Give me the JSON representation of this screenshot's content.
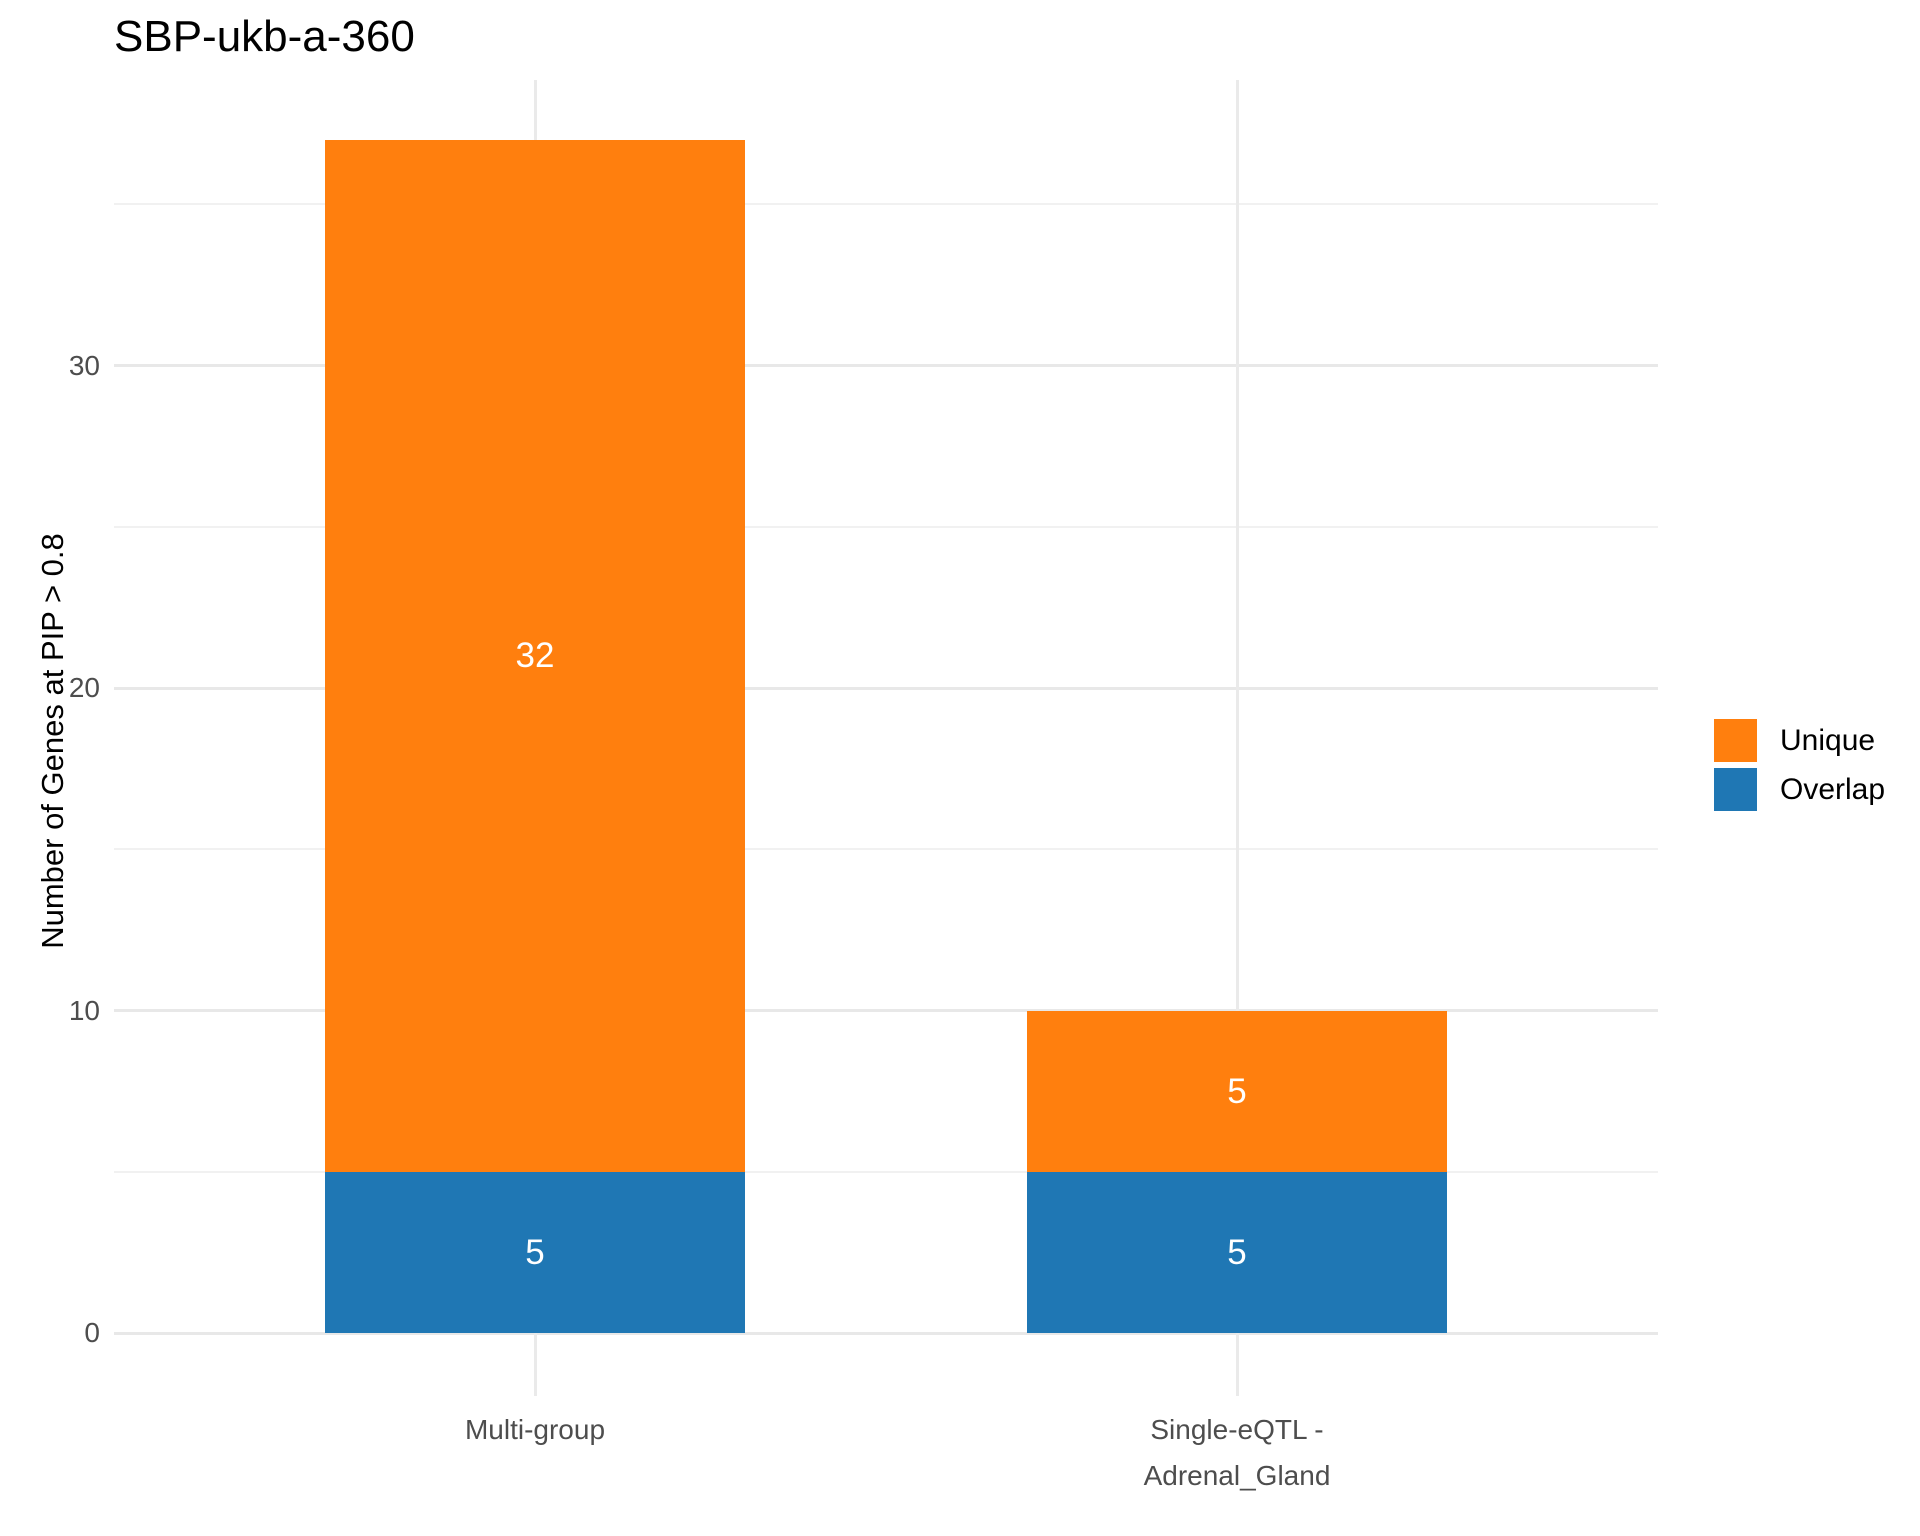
{
  "title": "SBP-ukb-a-360",
  "ylabel": "Number of Genes at PIP > 0.8",
  "legend": {
    "items": [
      {
        "label": "Unique",
        "color": "#ff7f0e"
      },
      {
        "label": "Overlap",
        "color": "#1f77b4"
      }
    ]
  },
  "chart_data": {
    "type": "bar",
    "stacked": true,
    "title": "SBP-ukb-a-360",
    "xlabel": "",
    "ylabel": "Number of Genes at PIP > 0.8",
    "categories": [
      "Multi-group",
      "Single-eQTL -\nAdrenal_Gland"
    ],
    "series": [
      {
        "name": "Overlap",
        "color": "#1f77b4",
        "values": [
          5,
          5
        ]
      },
      {
        "name": "Unique",
        "color": "#ff7f0e",
        "values": [
          32,
          5
        ]
      }
    ],
    "totals": [
      37,
      10
    ],
    "bar_value_labels": [
      {
        "category": "Multi-group",
        "segment": "Unique",
        "value": 32
      },
      {
        "category": "Multi-group",
        "segment": "Overlap",
        "value": 5
      },
      {
        "category": "Single-eQTL - Adrenal_Gland",
        "segment": "Unique",
        "value": 5
      },
      {
        "category": "Single-eQTL - Adrenal_Gland",
        "segment": "Overlap",
        "value": 5
      }
    ],
    "ylim": [
      0,
      38.85
    ],
    "yticks": [
      0,
      10,
      20,
      30
    ],
    "minor_yticks": [
      5,
      15,
      25,
      35
    ],
    "grid": true,
    "legend_position": "right",
    "label_color": "#ffffff"
  }
}
